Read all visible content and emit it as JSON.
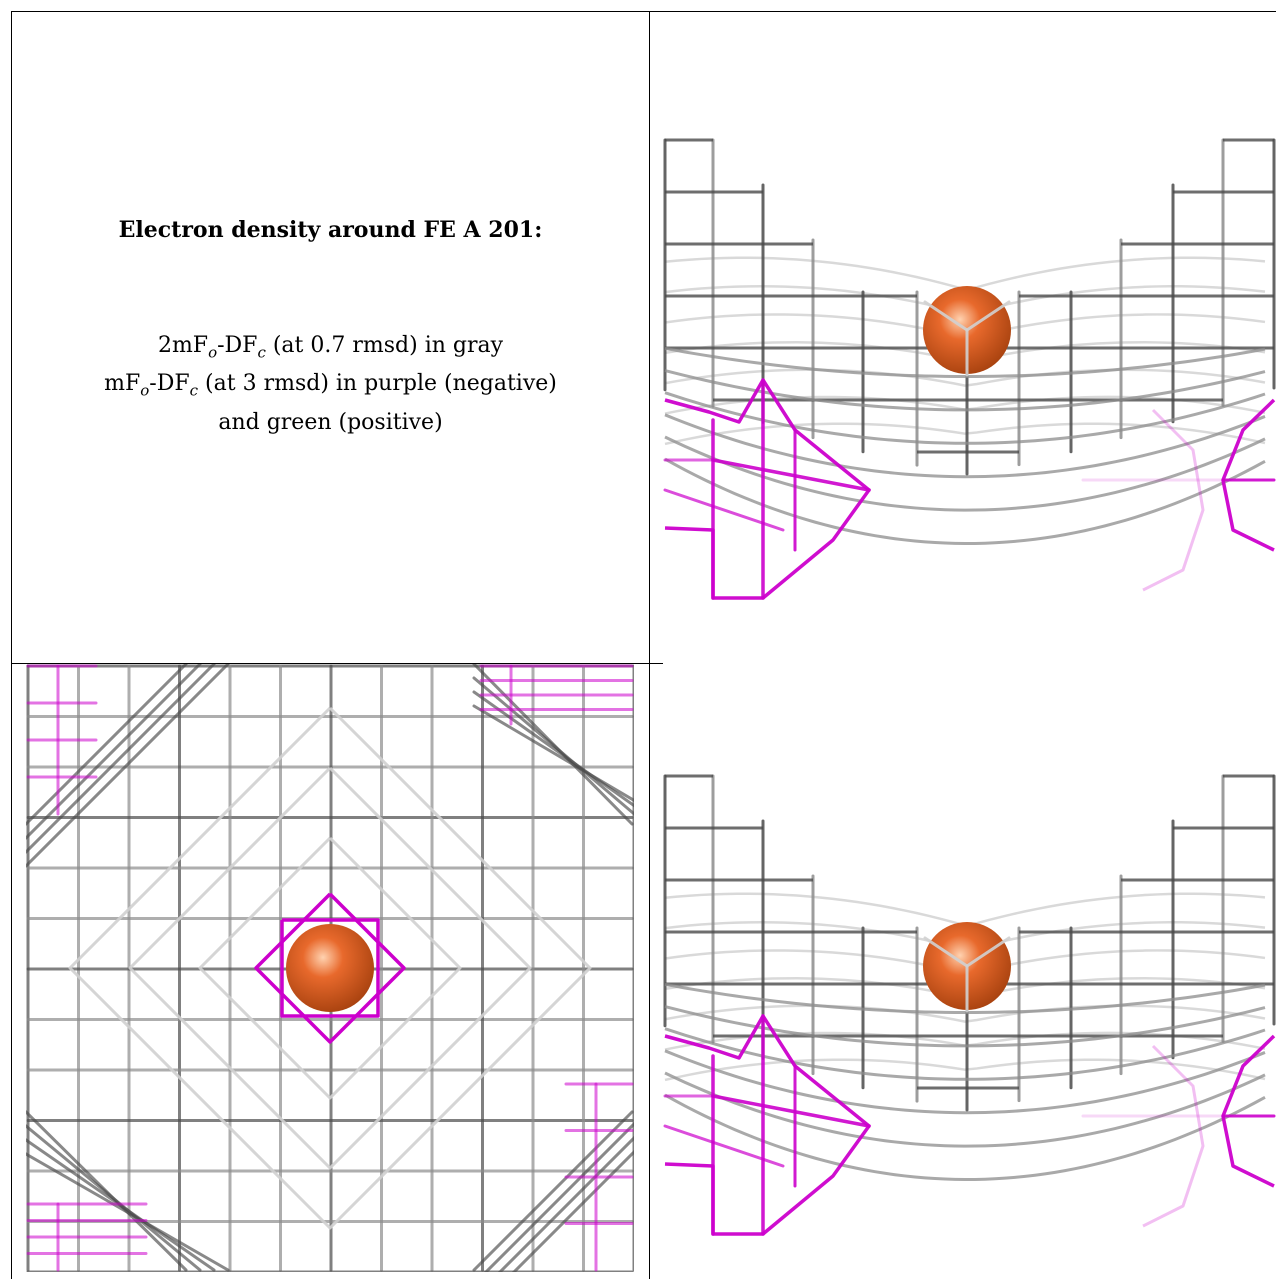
{
  "caption": {
    "title": "Electron density around FE A 201:",
    "line1_a": "2mF",
    "line1_sub1": "o",
    "line1_b": "-DF",
    "line1_sub2": "c",
    "line1_c": " (at 0.7 rmsd) in gray",
    "line2_a": "mF",
    "line2_sub1": "o",
    "line2_b": "-DF",
    "line2_sub2": "c",
    "line2_c": " (at 3 rmsd) in purple (negative)",
    "line3": "and green (positive)"
  },
  "colors": {
    "mesh_gray": "#8c8c8c",
    "mesh_dark": "#4a4a4a",
    "mesh_light": "#d0d0d0",
    "mesh_purple": "#cc00cc",
    "atom_orange": "#e8692c"
  },
  "panels": [
    {
      "name": "side-view-top",
      "atom": "FE"
    },
    {
      "name": "front-view",
      "atom": "FE"
    },
    {
      "name": "side-view-bottom",
      "atom": "FE"
    }
  ]
}
